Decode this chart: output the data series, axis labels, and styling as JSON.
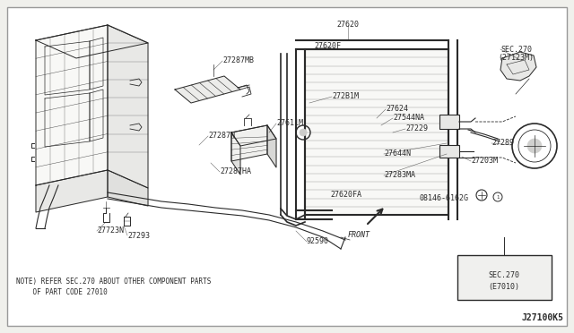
{
  "bg_color": "#ffffff",
  "outer_bg": "#f0f0ec",
  "line_color": "#2a2a2a",
  "text_color": "#2a2a2a",
  "diagram_id": "J27100K5",
  "note_line1": "NOTE) REFER SEC.270 ABOUT OTHER COMPONENT PARTS",
  "note_line2": "    OF PART CODE 27010",
  "fig_w": 6.4,
  "fig_h": 3.72,
  "dpi": 100
}
